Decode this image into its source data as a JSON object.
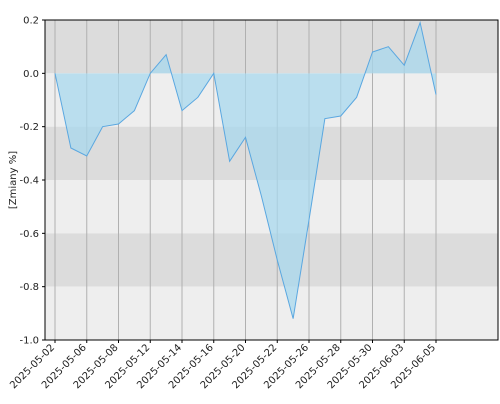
{
  "chart_data": {
    "type": "area",
    "y_label": "[Zmiany %]",
    "categories": [
      "2025-05-02",
      null,
      "2025-05-06",
      null,
      "2025-05-08",
      null,
      "2025-05-12",
      null,
      "2025-05-14",
      null,
      "2025-05-16",
      null,
      "2025-05-20",
      null,
      "2025-05-22",
      null,
      "2025-05-26",
      null,
      "2025-05-28",
      null,
      "2025-05-30",
      null,
      "2025-06-03",
      null,
      "2025-06-05"
    ],
    "values": [
      0.0,
      -0.28,
      -0.31,
      -0.2,
      -0.19,
      -0.14,
      0.0,
      0.07,
      -0.14,
      -0.09,
      0.0,
      -0.33,
      -0.24,
      -0.46,
      -0.7,
      -0.92,
      -0.55,
      -0.17,
      -0.16,
      -0.09,
      0.08,
      0.1,
      0.03,
      0.19,
      -0.08
    ],
    "color": "#5aa7e0",
    "fill": "#a8d8ee",
    "ylim": [
      -1.0,
      0.2
    ],
    "yticks": [
      0.2,
      {
        "value": 0,
        "label": "0.0"
      },
      -0.2,
      -0.4,
      -0.6,
      -0.8,
      {
        "value": -1.0,
        "label": "-1.0"
      }
    ],
    "grid": true
  }
}
